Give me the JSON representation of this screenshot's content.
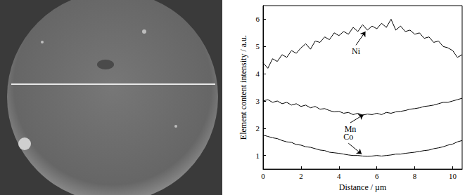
{
  "chart_data": {
    "type": "line",
    "x_label": "Distance / µm",
    "y_label": "Element content intensity / a.u.",
    "xlim": [
      0,
      10.5
    ],
    "xticks": [
      0,
      2,
      4,
      6,
      8,
      10
    ],
    "ylim": [
      0.5,
      6.5
    ],
    "yticks": [
      1,
      2,
      3,
      4,
      5,
      6
    ],
    "grid": false,
    "x": [
      0,
      0.25,
      0.5,
      0.75,
      1,
      1.25,
      1.5,
      1.75,
      2,
      2.25,
      2.5,
      2.75,
      3,
      3.25,
      3.5,
      3.75,
      4,
      4.25,
      4.5,
      4.75,
      5,
      5.25,
      5.5,
      5.75,
      6,
      6.25,
      6.5,
      6.75,
      7,
      7.25,
      7.5,
      7.75,
      8,
      8.25,
      8.5,
      8.75,
      9,
      9.25,
      9.5,
      9.75,
      10,
      10.25,
      10.5
    ],
    "series": [
      {
        "name": "Ni",
        "color": "#000000",
        "values": [
          4.4,
          4.2,
          4.55,
          4.45,
          4.7,
          4.6,
          4.85,
          4.75,
          4.95,
          5.1,
          4.9,
          5.2,
          5.15,
          5.35,
          5.25,
          5.5,
          5.4,
          5.55,
          5.45,
          5.7,
          5.55,
          5.8,
          5.6,
          5.75,
          5.65,
          5.85,
          5.7,
          6.0,
          5.6,
          5.75,
          5.55,
          5.6,
          5.45,
          5.5,
          5.3,
          5.35,
          5.15,
          5.2,
          5.0,
          4.95,
          4.85,
          4.6,
          4.7
        ],
        "annotation": {
          "x": 4.9,
          "y": 5.05,
          "arrow_x": 5.4,
          "arrow_y": 5.55
        }
      },
      {
        "name": "Mn",
        "color": "#000000",
        "values": [
          3.0,
          3.05,
          2.95,
          3.0,
          2.9,
          2.95,
          2.85,
          2.9,
          2.8,
          2.85,
          2.75,
          2.8,
          2.7,
          2.72,
          2.65,
          2.6,
          2.62,
          2.55,
          2.58,
          2.5,
          2.55,
          2.48,
          2.52,
          2.5,
          2.55,
          2.5,
          2.58,
          2.55,
          2.6,
          2.62,
          2.65,
          2.7,
          2.72,
          2.75,
          2.8,
          2.82,
          2.85,
          2.9,
          2.95,
          2.95,
          3.0,
          3.05,
          3.1
        ],
        "annotation": {
          "x": 4.6,
          "y": 2.2,
          "arrow_x": 5.3,
          "arrow_y": 2.5
        }
      },
      {
        "name": "Co",
        "color": "#000000",
        "values": [
          1.75,
          1.7,
          1.65,
          1.62,
          1.55,
          1.5,
          1.48,
          1.4,
          1.38,
          1.32,
          1.3,
          1.25,
          1.2,
          1.18,
          1.12,
          1.1,
          1.08,
          1.05,
          1.02,
          1.0,
          1.0,
          0.98,
          0.97,
          0.98,
          1.0,
          0.98,
          1.0,
          1.02,
          1.05,
          1.05,
          1.08,
          1.1,
          1.12,
          1.15,
          1.18,
          1.2,
          1.25,
          1.28,
          1.32,
          1.38,
          1.42,
          1.5,
          1.55
        ],
        "annotation": {
          "x": 4.5,
          "y": 1.45,
          "arrow_x": 5.2,
          "arrow_y": 1.05
        }
      }
    ]
  }
}
